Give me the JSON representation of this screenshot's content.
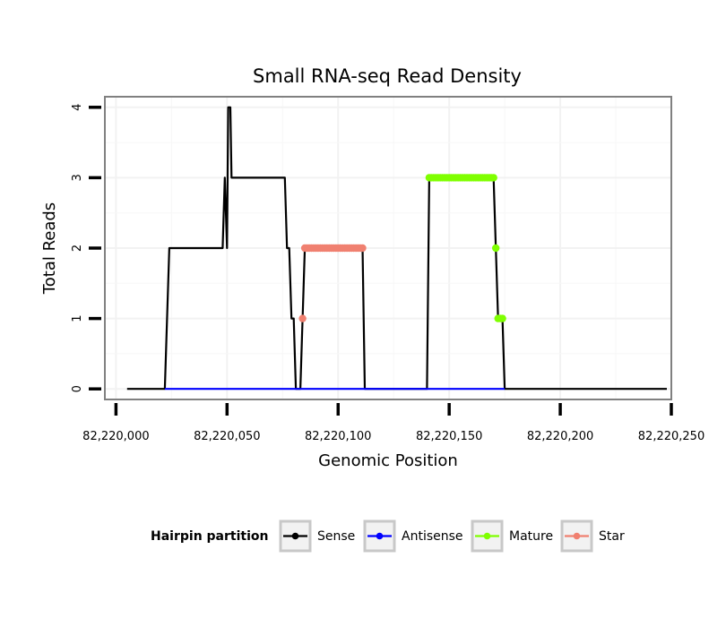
{
  "chart_data": {
    "type": "line",
    "title": "Small RNA-seq Read Density",
    "xlabel": "Genomic Position",
    "ylabel": "Total Reads",
    "xlim": [
      82219995,
      82220250
    ],
    "ylim": [
      -0.15,
      4.15
    ],
    "x_ticks": [
      82220000,
      82220050,
      82220100,
      82220150,
      82220200,
      82220250
    ],
    "x_tick_labels": [
      "82,220,000",
      "82,220,050",
      "82,220,100",
      "82,220,150",
      "82,220,200",
      "82,220,250"
    ],
    "y_ticks": [
      0,
      1,
      2,
      3,
      4
    ],
    "y_tick_labels": [
      "0",
      "1",
      "2",
      "3",
      "4"
    ],
    "grid": true,
    "legend_position": "bottom",
    "legend_title": "Hairpin partition",
    "series": [
      {
        "name": "Sense",
        "color": "#000000",
        "kind": "line",
        "points": [
          [
            82220005,
            0
          ],
          [
            82220022,
            0
          ],
          [
            82220024,
            2
          ],
          [
            82220048,
            2
          ],
          [
            82220049,
            3
          ],
          [
            82220050,
            2
          ],
          [
            82220050.5,
            4
          ],
          [
            82220051.5,
            4
          ],
          [
            82220052,
            3
          ],
          [
            82220076,
            3
          ],
          [
            82220077,
            2
          ],
          [
            82220078,
            2
          ],
          [
            82220079,
            1
          ],
          [
            82220080,
            1
          ],
          [
            82220081,
            0
          ],
          [
            82220083,
            0
          ],
          [
            82220085,
            2
          ],
          [
            82220111,
            2
          ],
          [
            82220112,
            0
          ],
          [
            82220140,
            0
          ],
          [
            82220141,
            3
          ],
          [
            82220170,
            3
          ],
          [
            82220171,
            2
          ],
          [
            82220172,
            1
          ],
          [
            82220174,
            1
          ],
          [
            82220175,
            0
          ],
          [
            82220248,
            0
          ]
        ]
      },
      {
        "name": "Antisense",
        "color": "#0000ff",
        "kind": "line",
        "points": [
          [
            82220022,
            0
          ],
          [
            82220112,
            0
          ],
          [
            82220141,
            0
          ],
          [
            82220175,
            0
          ]
        ]
      },
      {
        "name": "Mature",
        "color": "#7fff00",
        "kind": "points",
        "points": [
          [
            82220141,
            3
          ],
          [
            82220142,
            3
          ],
          [
            82220143,
            3
          ],
          [
            82220144,
            3
          ],
          [
            82220145,
            3
          ],
          [
            82220146,
            3
          ],
          [
            82220147,
            3
          ],
          [
            82220148,
            3
          ],
          [
            82220149,
            3
          ],
          [
            82220150,
            3
          ],
          [
            82220151,
            3
          ],
          [
            82220152,
            3
          ],
          [
            82220153,
            3
          ],
          [
            82220154,
            3
          ],
          [
            82220155,
            3
          ],
          [
            82220156,
            3
          ],
          [
            82220157,
            3
          ],
          [
            82220158,
            3
          ],
          [
            82220159,
            3
          ],
          [
            82220160,
            3
          ],
          [
            82220161,
            3
          ],
          [
            82220162,
            3
          ],
          [
            82220163,
            3
          ],
          [
            82220164,
            3
          ],
          [
            82220165,
            3
          ],
          [
            82220166,
            3
          ],
          [
            82220167,
            3
          ],
          [
            82220168,
            3
          ],
          [
            82220169,
            3
          ],
          [
            82220170,
            3
          ],
          [
            82220171,
            2
          ],
          [
            82220172,
            1
          ],
          [
            82220173,
            1
          ],
          [
            82220174,
            1
          ]
        ]
      },
      {
        "name": "Star",
        "color": "#f08070",
        "kind": "points",
        "points": [
          [
            82220084,
            1
          ],
          [
            82220085,
            2
          ],
          [
            82220086,
            2
          ],
          [
            82220087,
            2
          ],
          [
            82220088,
            2
          ],
          [
            82220089,
            2
          ],
          [
            82220090,
            2
          ],
          [
            82220091,
            2
          ],
          [
            82220092,
            2
          ],
          [
            82220093,
            2
          ],
          [
            82220094,
            2
          ],
          [
            82220095,
            2
          ],
          [
            82220096,
            2
          ],
          [
            82220097,
            2
          ],
          [
            82220098,
            2
          ],
          [
            82220099,
            2
          ],
          [
            82220100,
            2
          ],
          [
            82220101,
            2
          ],
          [
            82220102,
            2
          ],
          [
            82220103,
            2
          ],
          [
            82220104,
            2
          ],
          [
            82220105,
            2
          ],
          [
            82220106,
            2
          ],
          [
            82220107,
            2
          ],
          [
            82220108,
            2
          ],
          [
            82220109,
            2
          ],
          [
            82220110,
            2
          ],
          [
            82220111,
            2
          ]
        ]
      }
    ]
  }
}
